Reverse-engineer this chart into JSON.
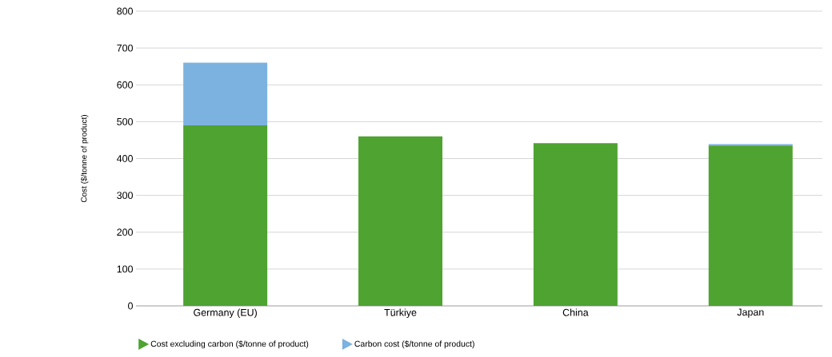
{
  "chart_data": {
    "type": "bar",
    "stacked": true,
    "ylabel": "Cost ($/tonne of product)",
    "categories": [
      "Germany (EU)",
      "Türkiye",
      "China",
      "Japan"
    ],
    "series": [
      {
        "name": "Cost excluding carbon ($/tonne of product)",
        "color": "#4ea331",
        "values": [
          490,
          460,
          442,
          435
        ]
      },
      {
        "name": "Carbon cost ($/tonne of product)",
        "color": "#7cb2e0",
        "values": [
          170,
          0,
          0,
          4
        ]
      }
    ],
    "ylim": [
      0,
      800
    ],
    "yticks": [
      0,
      100,
      200,
      300,
      400,
      500,
      600,
      700,
      800
    ],
    "grid": "y",
    "legend": "bottom"
  }
}
